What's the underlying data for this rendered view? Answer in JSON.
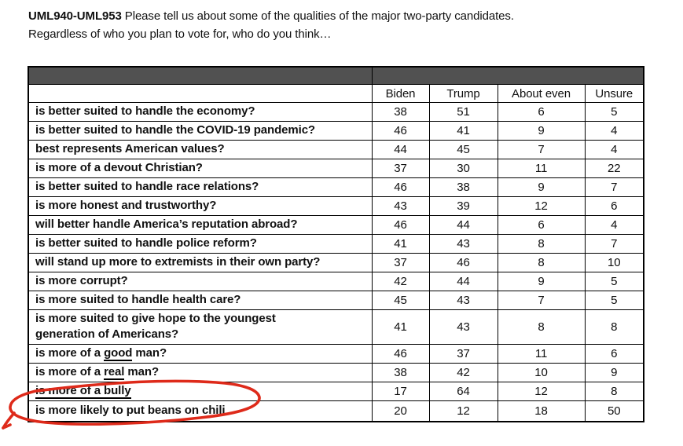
{
  "question": {
    "id": "UML940-UML953",
    "intro": " Please tell us about some of the qualities of the major two-party candidates.",
    "line2": "Regardless of who you plan to vote for, who do you think…"
  },
  "table": {
    "columns": [
      "Biden",
      "Trump",
      "About even",
      "Unsure"
    ],
    "rows": [
      {
        "label": "is better suited to handle the economy?",
        "values": [
          38,
          51,
          6,
          5
        ]
      },
      {
        "label": "is better suited to handle the COVID-19 pandemic?",
        "values": [
          46,
          41,
          9,
          4
        ]
      },
      {
        "label": "best represents American values?",
        "values": [
          44,
          45,
          7,
          4
        ]
      },
      {
        "label": "is more of a devout Christian?",
        "values": [
          37,
          30,
          11,
          22
        ]
      },
      {
        "label": "is better suited to handle race relations?",
        "values": [
          46,
          38,
          9,
          7
        ]
      },
      {
        "label": "is more honest and trustworthy?",
        "values": [
          43,
          39,
          12,
          6
        ]
      },
      {
        "label": "will better handle America’s reputation abroad?",
        "values": [
          46,
          44,
          6,
          4
        ]
      },
      {
        "label": "is better suited to handle police reform?",
        "values": [
          41,
          43,
          8,
          7
        ]
      },
      {
        "label": "will stand up more to extremists in their own party?",
        "values": [
          37,
          46,
          8,
          10
        ]
      },
      {
        "label": "is more corrupt?",
        "values": [
          42,
          44,
          9,
          5
        ]
      },
      {
        "label": "is more suited to handle health care?",
        "values": [
          45,
          43,
          7,
          5
        ]
      },
      {
        "label": "is more suited to give hope to the youngest\ngeneration of Americans?",
        "values": [
          41,
          43,
          8,
          8
        ]
      },
      {
        "label": "is more of a good man?",
        "underline": "good",
        "values": [
          46,
          37,
          11,
          6
        ]
      },
      {
        "label": "is more of a real man?",
        "underline": "real",
        "values": [
          38,
          42,
          10,
          9
        ]
      },
      {
        "label": "is more of a bully",
        "underline": "is more of a bully",
        "values": [
          17,
          64,
          12,
          8
        ]
      },
      {
        "label": "is more likely to put beans on chili",
        "values": [
          20,
          12,
          18,
          50
        ],
        "annotated": true
      }
    ]
  },
  "annotation": {
    "shape": "hand-drawn-circle-with-tail",
    "target_row": "is more likely to put beans on chili",
    "color": "#de2a1a"
  },
  "colors": {
    "header_bar": "#515151",
    "border": "#000000",
    "text": "#111111"
  }
}
